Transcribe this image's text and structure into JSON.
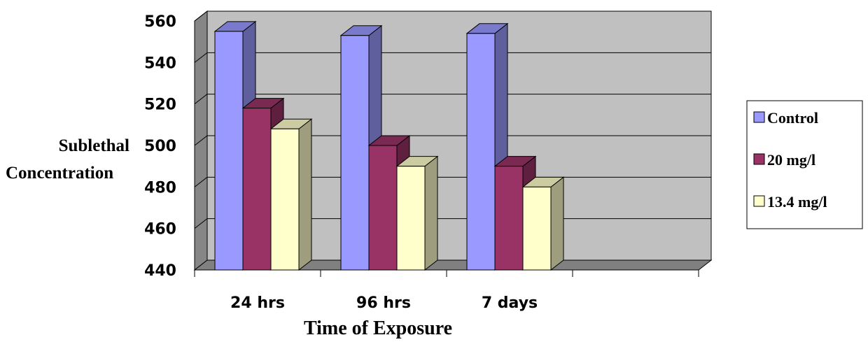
{
  "chart_data": {
    "type": "bar",
    "categories": [
      "24 hrs",
      "96 hrs",
      "7 days"
    ],
    "series": [
      {
        "name": "Control",
        "values": [
          555,
          553,
          554
        ],
        "color": "#9999ff"
      },
      {
        "name": "20 mg/l",
        "values": [
          518,
          500,
          490
        ],
        "color": "#993366"
      },
      {
        "name": "13.4 mg/l",
        "values": [
          508,
          490,
          480
        ],
        "color": "#ffffcc"
      }
    ],
    "xlabel": "Time of Exposure",
    "ylabel": [
      "Sublethal",
      "Concentration"
    ],
    "ylim": [
      440,
      560
    ],
    "yticks": [
      440,
      460,
      480,
      500,
      520,
      540,
      560
    ],
    "grid": true,
    "legend": "right",
    "style": "3d-clustered",
    "wall_color": "#c0c0c0",
    "floor_color": "#808080"
  }
}
